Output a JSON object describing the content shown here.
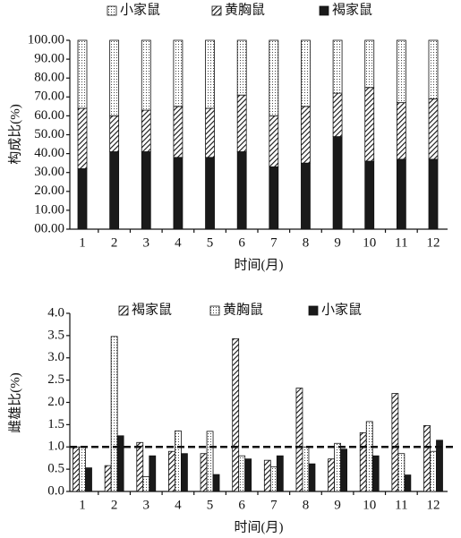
{
  "chart_data": [
    {
      "type": "stacked_bar",
      "categories": [
        "1",
        "2",
        "3",
        "4",
        "5",
        "6",
        "7",
        "8",
        "9",
        "10",
        "11",
        "12"
      ],
      "series": [
        {
          "name": "褐家鼠",
          "color": "#1a1a1a",
          "pattern": "solid",
          "values": [
            32,
            41,
            41,
            38,
            38,
            41,
            33,
            35,
            49,
            36,
            37,
            37
          ]
        },
        {
          "name": "黄胸鼠",
          "color": "#1a1a1a",
          "pattern": "hatch",
          "values": [
            32,
            19,
            22,
            27,
            26,
            30,
            27,
            30,
            23,
            39,
            30,
            32
          ]
        },
        {
          "name": "小家鼠",
          "color": "#1a1a1a",
          "pattern": "dots",
          "values": [
            36,
            40,
            37,
            35,
            36,
            29,
            40,
            35,
            28,
            25,
            33,
            31
          ]
        }
      ],
      "legend_order": "reversed",
      "xlabel": "时间(月)",
      "ylabel": "构成比(%)",
      "ylim": [
        0,
        100
      ],
      "yticks": [
        {
          "value": 0,
          "label": "00.00"
        },
        {
          "value": 10,
          "label": "10.00"
        },
        {
          "value": 20,
          "label": "20.00"
        },
        {
          "value": 30,
          "label": "30.00"
        },
        {
          "value": 40,
          "label": "40.00"
        },
        {
          "value": 50,
          "label": "50.00"
        },
        {
          "value": 60,
          "label": "60.00"
        },
        {
          "value": 70,
          "label": "70.00"
        },
        {
          "value": 80,
          "label": "80.00"
        },
        {
          "value": 90,
          "label": "90.00"
        },
        {
          "value": 100,
          "label": "100.00"
        }
      ]
    },
    {
      "type": "bar",
      "categories": [
        "1",
        "2",
        "3",
        "4",
        "5",
        "6",
        "7",
        "8",
        "9",
        "10",
        "11",
        "12"
      ],
      "series": [
        {
          "name": "褐家鼠",
          "color": "#1a1a1a",
          "pattern": "hatch",
          "values": [
            1.0,
            0.58,
            1.1,
            0.9,
            0.85,
            3.43,
            0.7,
            2.32,
            0.73,
            1.32,
            2.2,
            1.48
          ]
        },
        {
          "name": "黄胸鼠",
          "color": "#1a1a1a",
          "pattern": "dots",
          "values": [
            1.0,
            3.48,
            0.33,
            1.36,
            1.35,
            0.8,
            0.55,
            1.0,
            1.08,
            1.57,
            0.85,
            0.9
          ]
        },
        {
          "name": "小家鼠",
          "color": "#1a1a1a",
          "pattern": "solid",
          "values": [
            0.53,
            1.25,
            0.8,
            0.85,
            0.38,
            0.73,
            0.8,
            0.62,
            0.95,
            0.8,
            0.37,
            1.15
          ]
        }
      ],
      "legend_order": "normal",
      "reference_line": 1,
      "xlabel": "时间(月)",
      "ylabel": "雌雄比(%)",
      "ylim": [
        0,
        4
      ],
      "yticks": [
        {
          "value": 0,
          "label": "0.0"
        },
        0.5,
        {
          "value": 1,
          "label": "1.0"
        },
        1.5,
        {
          "value": 2,
          "label": "2.0"
        },
        2.5,
        {
          "value": 3,
          "label": "3.0"
        },
        3.5,
        {
          "value": 4,
          "label": "4.0"
        }
      ]
    }
  ]
}
